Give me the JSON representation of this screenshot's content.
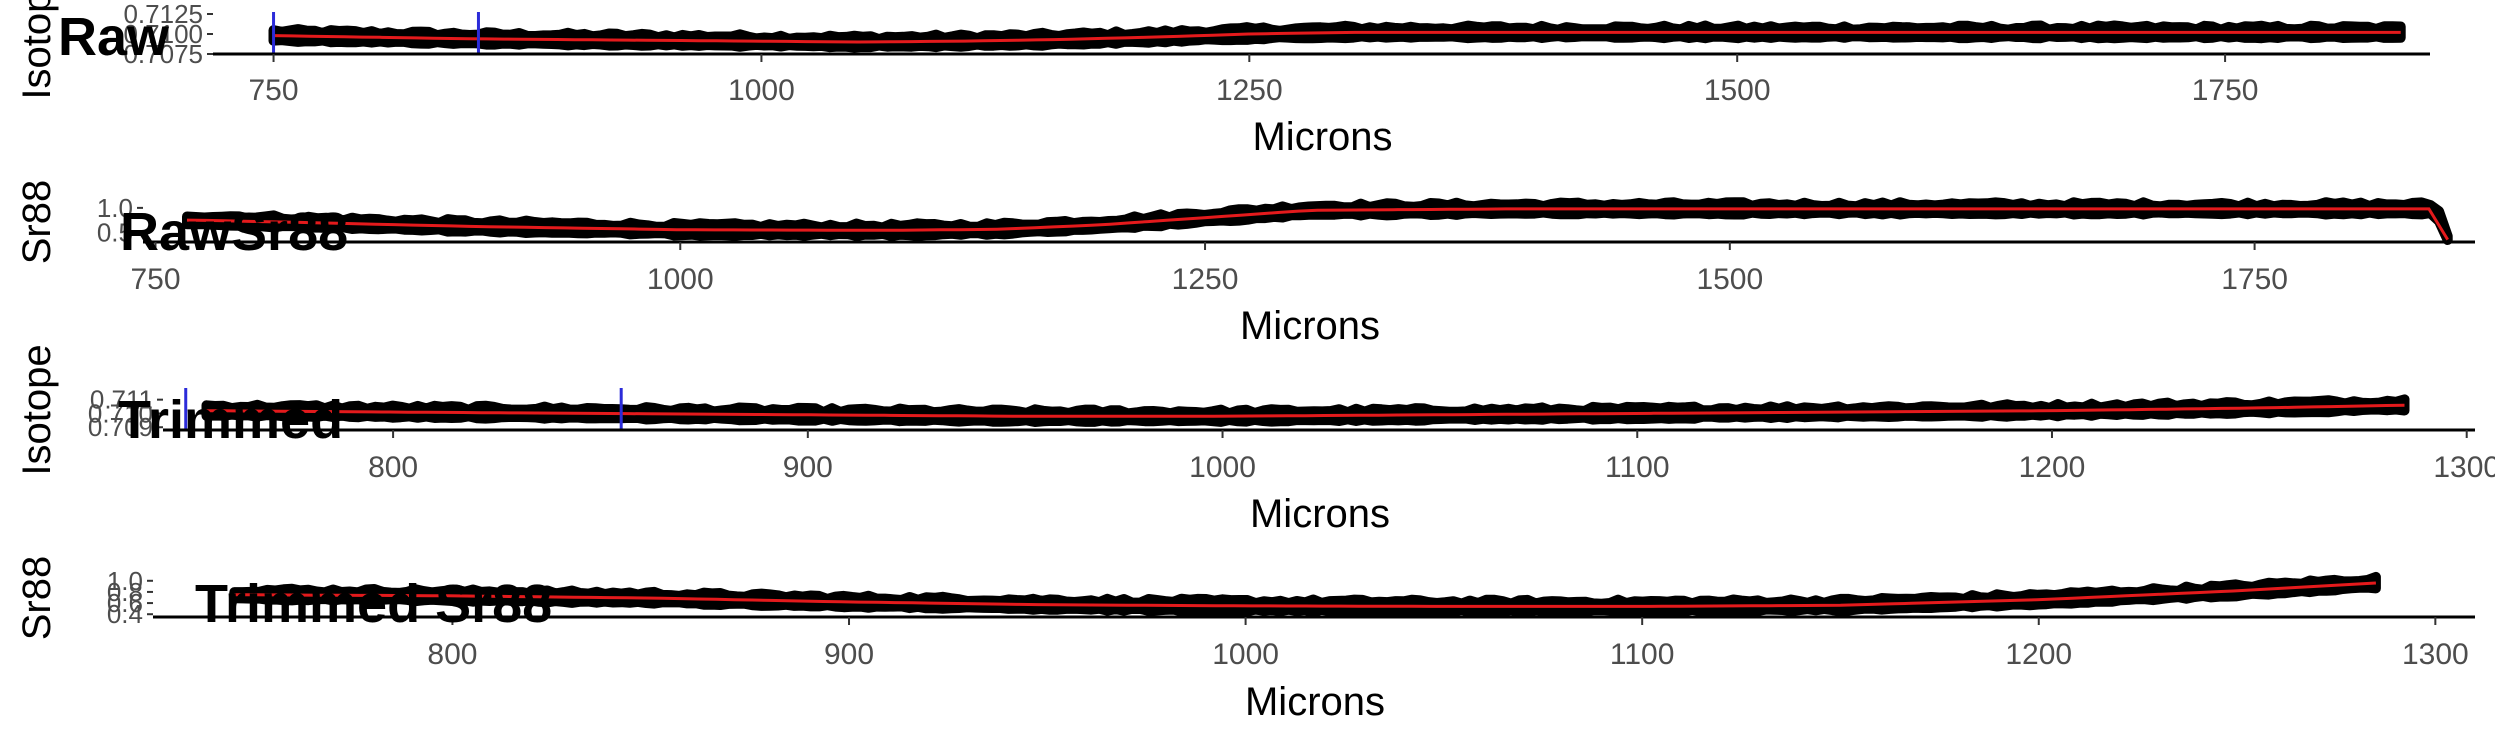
{
  "chart_data": [
    {
      "type": "line",
      "title": "Raw",
      "xlabel": "Microns",
      "ylabel": "Isotope",
      "xlim": [
        720,
        1855
      ],
      "ylim": [
        0.7075,
        0.7125
      ],
      "x_ticks": [
        "750",
        "1000",
        "1250",
        "1500",
        "1750"
      ],
      "y_ticks": [
        "0.7075",
        "0.7100",
        "0.7125"
      ],
      "vlines": [
        750,
        855
      ],
      "grid": false,
      "series": [
        {
          "values_x": [
            750,
            800,
            850,
            900,
            950,
            1000,
            1050,
            1100,
            1150,
            1200,
            1250,
            1300,
            1400,
            1500,
            1600,
            1700,
            1800,
            1840
          ],
          "values_y": [
            0.7098,
            0.7096,
            0.7094,
            0.7093,
            0.7092,
            0.7091,
            0.709,
            0.7091,
            0.7093,
            0.7096,
            0.71,
            0.7102,
            0.7102,
            0.7102,
            0.7102,
            0.7102,
            0.7102,
            0.7102
          ]
        }
      ]
    },
    {
      "type": "line",
      "title": "RawSr88",
      "xlabel": "Microns",
      "ylabel": "Sr88",
      "xlim": [
        745,
        1855
      ],
      "ylim": [
        0.3,
        1.1
      ],
      "x_ticks": [
        "750",
        "1000",
        "1250",
        "1500",
        "1750"
      ],
      "y_ticks": [
        "0.5",
        "1.0"
      ],
      "grid": false,
      "series": [
        {
          "values_x": [
            765,
            800,
            900,
            1000,
            1100,
            1150,
            1200,
            1250,
            1300,
            1400,
            1500,
            1600,
            1700,
            1800,
            1836,
            1840,
            1842
          ],
          "values_y": [
            0.75,
            0.72,
            0.62,
            0.55,
            0.54,
            0.56,
            0.65,
            0.8,
            0.95,
            0.98,
            0.98,
            0.98,
            0.98,
            0.98,
            0.98,
            0.65,
            0.35
          ]
        }
      ]
    },
    {
      "type": "line",
      "title": "Trimmed",
      "xlabel": "Microns",
      "ylabel": "Isotope",
      "xlim": [
        745,
        1302
      ],
      "ylim": [
        0.7088,
        0.7117
      ],
      "x_ticks": [
        "800",
        "900",
        "1000",
        "1100",
        "1200",
        "1300"
      ],
      "y_ticks": [
        "0.709",
        "0.710",
        "0.711"
      ],
      "vlines": [
        750,
        855
      ],
      "grid": false,
      "series": [
        {
          "values_x": [
            755,
            800,
            850,
            900,
            950,
            1000,
            1050,
            1100,
            1150,
            1200,
            1250,
            1285
          ],
          "values_y": [
            0.7102,
            0.7101,
            0.71,
            0.7099,
            0.7098,
            0.7098,
            0.7099,
            0.71,
            0.7101,
            0.7102,
            0.7104,
            0.7106
          ]
        }
      ]
    },
    {
      "type": "line",
      "title": "Trimmed Sr88",
      "xlabel": "Microns",
      "ylabel": "Sr88",
      "xlim": [
        725,
        1310
      ],
      "ylim": [
        0.35,
        1.05
      ],
      "x_ticks": [
        "800",
        "900",
        "1000",
        "1100",
        "1200",
        "1300"
      ],
      "y_ticks": [
        "0.4",
        "0.6",
        "0.8",
        "1.0"
      ],
      "grid": false,
      "series": [
        {
          "values_x": [
            745,
            800,
            850,
            900,
            950,
            1000,
            1050,
            1100,
            1150,
            1200,
            1250,
            1285
          ],
          "values_y": [
            0.75,
            0.73,
            0.69,
            0.62,
            0.57,
            0.55,
            0.54,
            0.54,
            0.56,
            0.66,
            0.82,
            0.96
          ]
        }
      ]
    }
  ]
}
